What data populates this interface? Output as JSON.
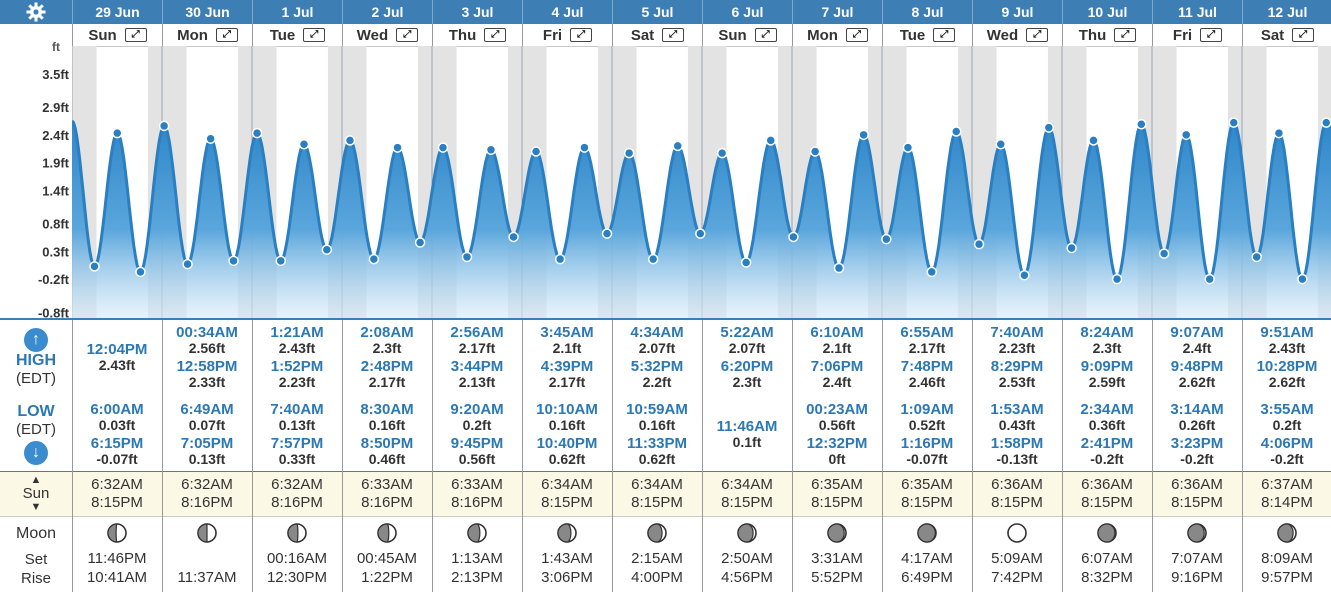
{
  "header": {
    "settings_icon": "gear-icon",
    "dates": [
      "29 Jun",
      "30 Jun",
      "1 Jul",
      "2 Jul",
      "3 Jul",
      "4 Jul",
      "5 Jul",
      "6 Jul",
      "7 Jul",
      "8 Jul",
      "9 Jul",
      "10 Jul",
      "11 Jul",
      "12 Jul"
    ],
    "weekdays": [
      "Sun",
      "Mon",
      "Tue",
      "Wed",
      "Thu",
      "Fri",
      "Sat",
      "Sun",
      "Mon",
      "Tue",
      "Wed",
      "Thu",
      "Fri",
      "Sat"
    ]
  },
  "chart_data": {
    "type": "area",
    "title": "",
    "y_unit": "ft",
    "y_ticks": [
      "3.5ft",
      "2.9ft",
      "2.4ft",
      "1.9ft",
      "1.4ft",
      "0.8ft",
      "0.3ft",
      "-0.2ft",
      "-0.8ft"
    ],
    "y_tick_values": [
      3.5,
      2.9,
      2.4,
      1.9,
      1.4,
      0.8,
      0.3,
      -0.2,
      -0.8
    ],
    "ylim": [
      -0.9,
      4.0
    ],
    "x_unit": "hours since 29 Jun 00:00",
    "points": [
      [
        0,
        2.65
      ],
      [
        6.0,
        0.03
      ],
      [
        12.07,
        2.43
      ],
      [
        18.25,
        -0.07
      ],
      [
        24.57,
        2.56
      ],
      [
        30.82,
        0.07
      ],
      [
        36.97,
        2.33
      ],
      [
        43.08,
        0.13
      ],
      [
        49.35,
        2.43
      ],
      [
        55.67,
        0.13
      ],
      [
        61.87,
        2.23
      ],
      [
        67.95,
        0.33
      ],
      [
        74.13,
        2.3
      ],
      [
        80.5,
        0.16
      ],
      [
        86.8,
        2.17
      ],
      [
        92.83,
        0.46
      ],
      [
        98.93,
        2.17
      ],
      [
        105.33,
        0.2
      ],
      [
        111.73,
        2.13
      ],
      [
        117.75,
        0.56
      ],
      [
        123.75,
        2.1
      ],
      [
        130.17,
        0.16
      ],
      [
        136.65,
        2.17
      ],
      [
        142.67,
        0.62
      ],
      [
        148.57,
        2.07
      ],
      [
        154.98,
        0.16
      ],
      [
        161.53,
        2.2
      ],
      [
        167.55,
        0.62
      ],
      [
        173.37,
        2.07
      ],
      [
        179.77,
        0.1
      ],
      [
        186.33,
        2.3
      ],
      [
        192.38,
        0.56
      ],
      [
        198.17,
        2.1
      ],
      [
        204.53,
        0.0
      ],
      [
        211.1,
        2.4
      ],
      [
        217.15,
        0.52
      ],
      [
        222.92,
        2.17
      ],
      [
        229.27,
        -0.07
      ],
      [
        235.8,
        2.46
      ],
      [
        241.88,
        0.43
      ],
      [
        247.67,
        2.23
      ],
      [
        253.97,
        -0.13
      ],
      [
        260.48,
        2.53
      ],
      [
        266.57,
        0.36
      ],
      [
        272.4,
        2.3
      ],
      [
        278.68,
        -0.2
      ],
      [
        285.15,
        2.59
      ],
      [
        291.23,
        0.26
      ],
      [
        297.12,
        2.4
      ],
      [
        303.38,
        -0.2
      ],
      [
        309.8,
        2.62
      ],
      [
        315.92,
        0.2
      ],
      [
        321.85,
        2.43
      ],
      [
        328.1,
        -0.2
      ],
      [
        334.47,
        2.62
      ],
      [
        336,
        2.55
      ]
    ]
  },
  "labels": {
    "high": "HIGH",
    "edt": "(EDT)",
    "low": "LOW",
    "sun": "Sun",
    "moon": "Moon",
    "set": "Set",
    "rise": "Rise",
    "up_arrow_icon": "arrow-up-icon",
    "down_arrow_icon": "arrow-down-icon"
  },
  "days": [
    {
      "highs": [
        {
          "time": "12:04PM",
          "height": "2.43ft"
        }
      ],
      "lows": [
        {
          "time": "6:00AM",
          "height": "0.03ft"
        },
        {
          "time": "6:15PM",
          "height": "-0.07ft"
        }
      ],
      "sunrise": "6:32AM",
      "sunset": "8:15PM",
      "moon_phase": 0.55,
      "moonset": "11:46PM",
      "moonrise": "10:41AM"
    },
    {
      "highs": [
        {
          "time": "00:34AM",
          "height": "2.56ft"
        },
        {
          "time": "12:58PM",
          "height": "2.33ft"
        }
      ],
      "lows": [
        {
          "time": "6:49AM",
          "height": "0.07ft"
        },
        {
          "time": "7:05PM",
          "height": "0.13ft"
        }
      ],
      "sunrise": "6:32AM",
      "sunset": "8:16PM",
      "moon_phase": 0.5,
      "moonset": "",
      "moonrise": "11:37AM"
    },
    {
      "highs": [
        {
          "time": "1:21AM",
          "height": "2.43ft"
        },
        {
          "time": "1:52PM",
          "height": "2.23ft"
        }
      ],
      "lows": [
        {
          "time": "7:40AM",
          "height": "0.13ft"
        },
        {
          "time": "7:57PM",
          "height": "0.33ft"
        }
      ],
      "sunrise": "6:32AM",
      "sunset": "8:16PM",
      "moon_phase": 0.45,
      "moonset": "00:16AM",
      "moonrise": "12:30PM"
    },
    {
      "highs": [
        {
          "time": "2:08AM",
          "height": "2.3ft"
        },
        {
          "time": "2:48PM",
          "height": "2.17ft"
        }
      ],
      "lows": [
        {
          "time": "8:30AM",
          "height": "0.16ft"
        },
        {
          "time": "8:50PM",
          "height": "0.46ft"
        }
      ],
      "sunrise": "6:33AM",
      "sunset": "8:16PM",
      "moon_phase": 0.4,
      "moonset": "00:45AM",
      "moonrise": "1:22PM"
    },
    {
      "highs": [
        {
          "time": "2:56AM",
          "height": "2.17ft"
        },
        {
          "time": "3:44PM",
          "height": "2.13ft"
        }
      ],
      "lows": [
        {
          "time": "9:20AM",
          "height": "0.2ft"
        },
        {
          "time": "9:45PM",
          "height": "0.56ft"
        }
      ],
      "sunrise": "6:33AM",
      "sunset": "8:16PM",
      "moon_phase": 0.34,
      "moonset": "1:13AM",
      "moonrise": "2:13PM"
    },
    {
      "highs": [
        {
          "time": "3:45AM",
          "height": "2.1ft"
        },
        {
          "time": "4:39PM",
          "height": "2.17ft"
        }
      ],
      "lows": [
        {
          "time": "10:10AM",
          "height": "0.16ft"
        },
        {
          "time": "10:40PM",
          "height": "0.62ft"
        }
      ],
      "sunrise": "6:34AM",
      "sunset": "8:15PM",
      "moon_phase": 0.28,
      "moonset": "1:43AM",
      "moonrise": "3:06PM"
    },
    {
      "highs": [
        {
          "time": "4:34AM",
          "height": "2.07ft"
        },
        {
          "time": "5:32PM",
          "height": "2.2ft"
        }
      ],
      "lows": [
        {
          "time": "10:59AM",
          "height": "0.16ft"
        },
        {
          "time": "11:33PM",
          "height": "0.62ft"
        }
      ],
      "sunrise": "6:34AM",
      "sunset": "8:15PM",
      "moon_phase": 0.22,
      "moonset": "2:15AM",
      "moonrise": "4:00PM"
    },
    {
      "highs": [
        {
          "time": "5:22AM",
          "height": "2.07ft"
        },
        {
          "time": "6:20PM",
          "height": "2.3ft"
        }
      ],
      "lows": [
        {
          "time": "11:46AM",
          "height": "0.1ft"
        }
      ],
      "sunrise": "6:34AM",
      "sunset": "8:15PM",
      "moon_phase": 0.16,
      "moonset": "2:50AM",
      "moonrise": "4:56PM"
    },
    {
      "highs": [
        {
          "time": "6:10AM",
          "height": "2.1ft"
        },
        {
          "time": "7:06PM",
          "height": "2.4ft"
        }
      ],
      "lows": [
        {
          "time": "00:23AM",
          "height": "0.56ft"
        },
        {
          "time": "12:32PM",
          "height": "0ft"
        }
      ],
      "sunrise": "6:35AM",
      "sunset": "8:15PM",
      "moon_phase": 0.1,
      "moonset": "3:31AM",
      "moonrise": "5:52PM"
    },
    {
      "highs": [
        {
          "time": "6:55AM",
          "height": "2.17ft"
        },
        {
          "time": "7:48PM",
          "height": "2.46ft"
        }
      ],
      "lows": [
        {
          "time": "1:09AM",
          "height": "0.52ft"
        },
        {
          "time": "1:16PM",
          "height": "-0.07ft"
        }
      ],
      "sunrise": "6:35AM",
      "sunset": "8:15PM",
      "moon_phase": 0.04,
      "moonset": "4:17AM",
      "moonrise": "6:49PM"
    },
    {
      "highs": [
        {
          "time": "7:40AM",
          "height": "2.23ft"
        },
        {
          "time": "8:29PM",
          "height": "2.53ft"
        }
      ],
      "lows": [
        {
          "time": "1:53AM",
          "height": "0.43ft"
        },
        {
          "time": "1:58PM",
          "height": "-0.13ft"
        }
      ],
      "sunrise": "6:36AM",
      "sunset": "8:15PM",
      "moon_phase": 0.0,
      "moonset": "5:09AM",
      "moonrise": "7:42PM"
    },
    {
      "highs": [
        {
          "time": "8:24AM",
          "height": "2.3ft"
        },
        {
          "time": "9:09PM",
          "height": "2.59ft"
        }
      ],
      "lows": [
        {
          "time": "2:34AM",
          "height": "0.36ft"
        },
        {
          "time": "2:41PM",
          "height": "-0.2ft"
        }
      ],
      "sunrise": "6:36AM",
      "sunset": "8:15PM",
      "moon_phase": 0.06,
      "moonset": "6:07AM",
      "moonrise": "8:32PM"
    },
    {
      "highs": [
        {
          "time": "9:07AM",
          "height": "2.4ft"
        },
        {
          "time": "9:48PM",
          "height": "2.62ft"
        }
      ],
      "lows": [
        {
          "time": "3:14AM",
          "height": "0.26ft"
        },
        {
          "time": "3:23PM",
          "height": "-0.2ft"
        }
      ],
      "sunrise": "6:36AM",
      "sunset": "8:15PM",
      "moon_phase": 0.1,
      "moonset": "7:07AM",
      "moonrise": "9:16PM"
    },
    {
      "highs": [
        {
          "time": "9:51AM",
          "height": "2.43ft"
        },
        {
          "time": "10:28PM",
          "height": "2.62ft"
        }
      ],
      "lows": [
        {
          "time": "3:55AM",
          "height": "0.2ft"
        },
        {
          "time": "4:06PM",
          "height": "-0.2ft"
        }
      ],
      "sunrise": "6:37AM",
      "sunset": "8:14PM",
      "moon_phase": 0.16,
      "moonset": "8:09AM",
      "moonrise": "9:57PM"
    }
  ],
  "colors": {
    "header_bg": "#3d7fb5",
    "accent": "#2b78b5",
    "tide_line": "#2a7fc2",
    "tide_fill_top": "#3f95d4",
    "night_shade": "#e4e4e4",
    "sun_row_bg": "#fbf8e6"
  }
}
